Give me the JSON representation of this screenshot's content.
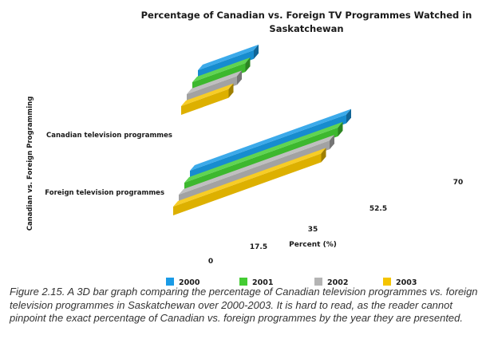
{
  "chart_data": {
    "type": "bar",
    "title": "Percentage of Canadian vs. Foreign TV Programmes Watched in Saskatchewan",
    "xlabel": "Percent (%)",
    "ylabel": "Canadian vs. Foreign Programming",
    "categories": [
      "Canadian television programmes",
      "Foreign television programmes"
    ],
    "series": [
      {
        "name": "2000",
        "values": [
          20,
          56
        ]
      },
      {
        "name": "2001",
        "values": [
          19,
          55
        ]
      },
      {
        "name": "2002",
        "values": [
          18,
          54
        ]
      },
      {
        "name": "2003",
        "values": [
          17,
          53
        ]
      }
    ],
    "xticks": [
      "0",
      "17.5",
      "35",
      "52.5",
      "70"
    ],
    "xlim": [
      0,
      70
    ],
    "colors": [
      "#1a9be6",
      "#44cc33",
      "#b4b4b4",
      "#f5c400"
    ],
    "legend_position": "bottom"
  },
  "caption": "Figure 2.15. A 3D bar graph comparing the percentage of Canadian television programmes vs. foreign television programmes in Saskatchewan over 2000-2003. It is hard to read, as the reader cannot pinpoint the exact percentage of Canadian vs. foreign programmes by the year they are presented."
}
